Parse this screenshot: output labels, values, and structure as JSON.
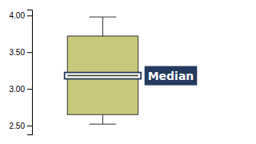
{
  "chart_data": {
    "type": "box",
    "q1": 2.65,
    "q3": 3.72,
    "median": 3.18,
    "whisker_low": 2.52,
    "whisker_high": 3.98,
    "color": "#c8c87a",
    "annotation": "Median",
    "ylim": [
      2.38,
      4.08
    ],
    "yticks": [
      {
        "value": 2.5,
        "label": "2.50"
      },
      {
        "value": 3.0,
        "label": "3.00"
      },
      {
        "value": 3.5,
        "label": "3.50"
      },
      {
        "value": 4.0,
        "label": "4.00"
      }
    ],
    "grid": false,
    "tick_labels": "y"
  }
}
